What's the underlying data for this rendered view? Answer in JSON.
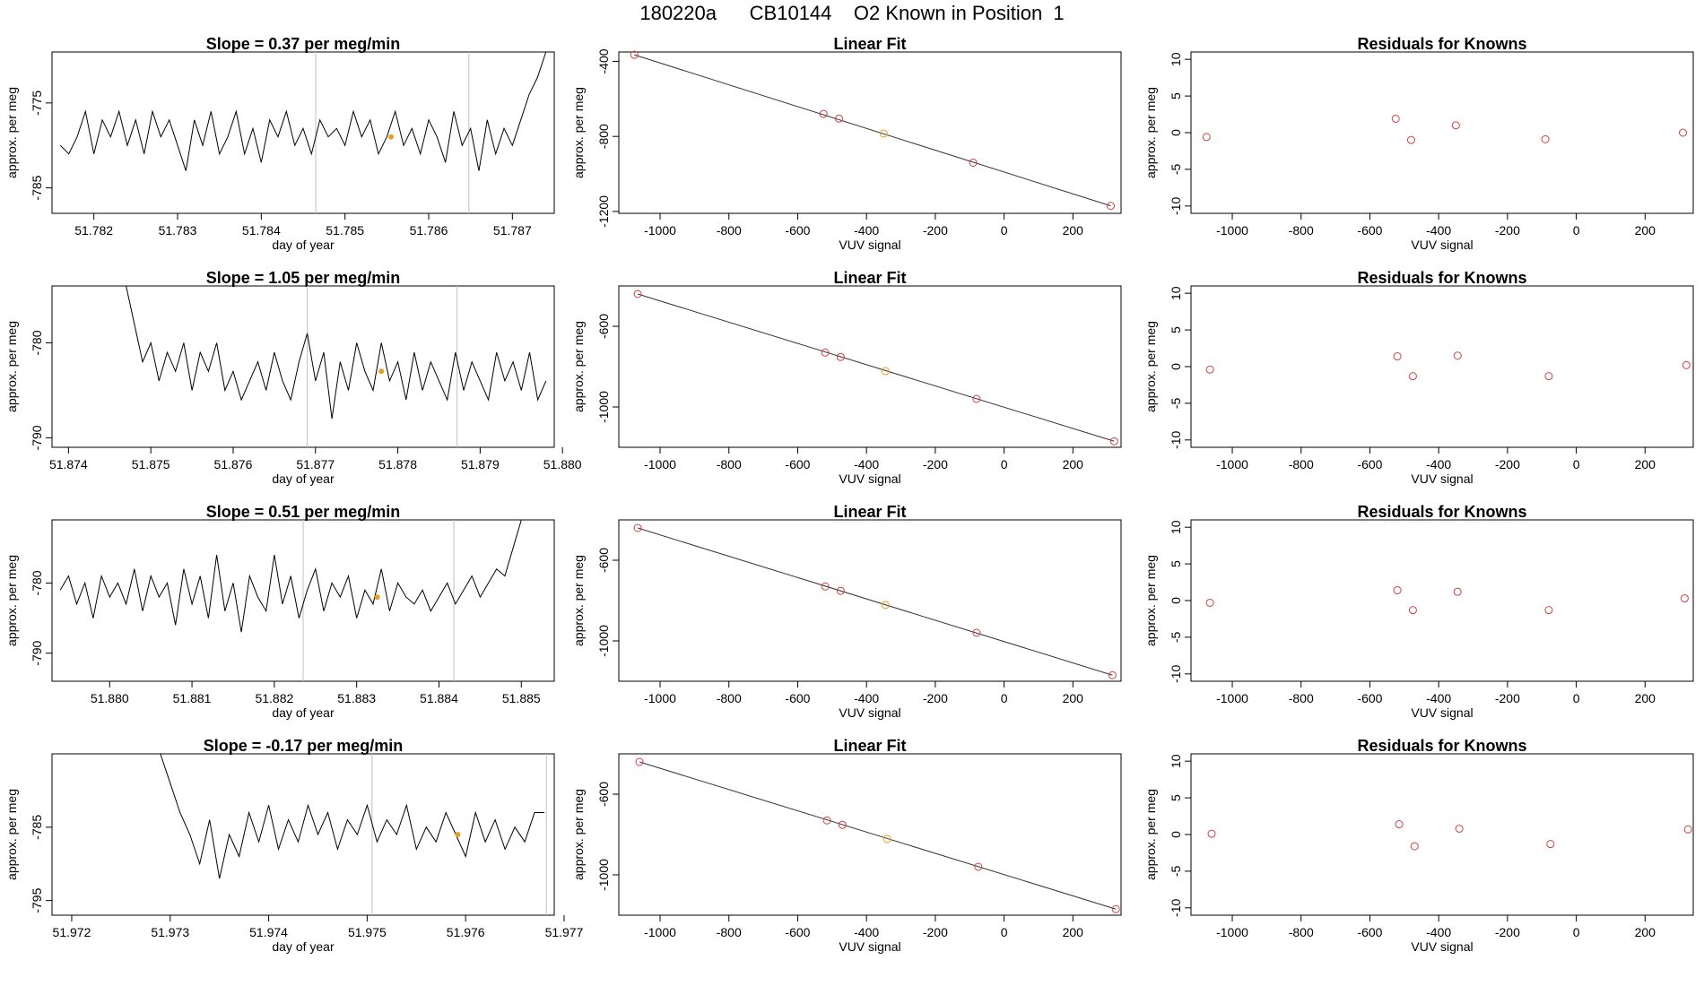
{
  "page_title": "180220a      CB10144    O2 Known in Position  1",
  "colors": {
    "series": "#000000",
    "highlight": "#e6a020",
    "points": "#d04040",
    "vline": "#c0c0c0",
    "frame": "#000000"
  },
  "chart_data": [
    {
      "type": "line",
      "title": "Slope =  0.37  per meg/min",
      "xlabel": "day of year",
      "ylabel": "approx. per meg",
      "xlim": [
        51.7815,
        51.7875
      ],
      "ylim": [
        -788,
        -769
      ],
      "xticks": [
        51.782,
        51.783,
        51.784,
        51.785,
        51.786,
        51.787
      ],
      "xtick_labels": [
        "51.782",
        "51.783",
        "51.784",
        "51.785",
        "51.786",
        "51.787"
      ],
      "yticks": [
        -775,
        -785
      ],
      "ytick_labels": [
        "-775",
        "-785"
      ],
      "vlines": [
        51.78465,
        51.78648
      ],
      "highlight_point": {
        "x": 51.78555,
        "y": -779
      },
      "x": [
        51.7816,
        51.7817,
        51.7818,
        51.7819,
        51.782,
        51.7821,
        51.7822,
        51.7823,
        51.7824,
        51.7825,
        51.7826,
        51.7827,
        51.7828,
        51.7829,
        51.783,
        51.7831,
        51.7832,
        51.7833,
        51.7834,
        51.7835,
        51.7836,
        51.7837,
        51.7838,
        51.7839,
        51.784,
        51.7841,
        51.7842,
        51.7843,
        51.7844,
        51.7845,
        51.7846,
        51.7847,
        51.7848,
        51.7849,
        51.785,
        51.7851,
        51.7852,
        51.7853,
        51.7854,
        51.7855,
        51.7856,
        51.7857,
        51.7858,
        51.7859,
        51.786,
        51.7861,
        51.7862,
        51.7863,
        51.7864,
        51.7865,
        51.7866,
        51.7867,
        51.7868,
        51.7869,
        51.787,
        51.7871,
        51.7872,
        51.7873,
        51.7874
      ],
      "y": [
        -780,
        -781,
        -779,
        -776,
        -781,
        -777,
        -779,
        -776,
        -780,
        -777,
        -781,
        -776,
        -779,
        -777,
        -780,
        -783,
        -777,
        -780,
        -776,
        -781,
        -779,
        -776,
        -781,
        -778,
        -782,
        -777,
        -779,
        -776,
        -780,
        -778,
        -781,
        -777,
        -779,
        -778,
        -780,
        -776,
        -779,
        -777,
        -781,
        -779,
        -776,
        -780,
        -778,
        -781,
        -777,
        -779,
        -782,
        -776,
        -780,
        -778,
        -783,
        -777,
        -781,
        -778,
        -780,
        -777,
        -774,
        -772,
        -769
      ]
    },
    {
      "type": "scatter",
      "title": "Linear Fit",
      "xlabel": "VUV signal",
      "ylabel": "approx. per meg",
      "xlim": [
        -1120,
        340
      ],
      "ylim": [
        -1210,
        -350
      ],
      "xticks": [
        -1000,
        -800,
        -600,
        -400,
        -200,
        0,
        200
      ],
      "xtick_labels": [
        "-1000",
        "-800",
        "-600",
        "-400",
        "-200",
        "0",
        "200"
      ],
      "yticks": [
        -400,
        -800,
        -1200
      ],
      "ytick_labels": [
        "-400",
        "-800",
        "-1200"
      ],
      "fit_line": {
        "x": [
          -1075,
          310
        ],
        "y": [
          -365,
          -1170
        ]
      },
      "x": [
        -1075,
        -525,
        -480,
        -350,
        -90,
        310
      ],
      "y": [
        -365,
        -680,
        -705,
        -785,
        -940,
        -1170
      ],
      "highlight_index": 3
    },
    {
      "type": "scatter",
      "title": "Residuals for Knowns",
      "xlabel": "VUV signal",
      "ylabel": "approx. per meg",
      "xlim": [
        -1120,
        340
      ],
      "ylim": [
        -11,
        11
      ],
      "xticks": [
        -1000,
        -800,
        -600,
        -400,
        -200,
        0,
        200
      ],
      "xtick_labels": [
        "-1000",
        "-800",
        "-600",
        "-400",
        "-200",
        "0",
        "200"
      ],
      "yticks": [
        10,
        5,
        0,
        -5,
        -10
      ],
      "ytick_labels": [
        "10",
        "5",
        "0",
        "-5",
        "-10"
      ],
      "x": [
        -1075,
        -525,
        -480,
        -350,
        -90,
        310
      ],
      "y": [
        -0.6,
        1.9,
        -1.0,
        1.0,
        -0.9,
        0.0
      ]
    },
    {
      "type": "line",
      "title": "Slope =  1.05  per meg/min",
      "xlabel": "day of year",
      "ylabel": "approx. per meg",
      "xlim": [
        51.8738,
        51.8799
      ],
      "ylim": [
        -791,
        -774
      ],
      "xticks": [
        51.874,
        51.875,
        51.876,
        51.877,
        51.878,
        51.879,
        51.88
      ],
      "xtick_labels": [
        "51.874",
        "51.875",
        "51.876",
        "51.877",
        "51.878",
        "51.879",
        "51.880"
      ],
      "yticks": [
        -780,
        -790
      ],
      "ytick_labels": [
        "-780",
        "-790"
      ],
      "vlines": [
        51.8769,
        51.87872
      ],
      "highlight_point": {
        "x": 51.8778,
        "y": -783
      },
      "x": [
        51.8747,
        51.8748,
        51.8749,
        51.875,
        51.8751,
        51.8752,
        51.8753,
        51.8754,
        51.8755,
        51.8756,
        51.8757,
        51.8758,
        51.8759,
        51.876,
        51.8761,
        51.8762,
        51.8763,
        51.8764,
        51.8765,
        51.8766,
        51.8767,
        51.8768,
        51.8769,
        51.877,
        51.8771,
        51.8772,
        51.8773,
        51.8774,
        51.8775,
        51.8776,
        51.8777,
        51.8778,
        51.8779,
        51.878,
        51.8781,
        51.8782,
        51.8783,
        51.8784,
        51.8785,
        51.8786,
        51.8787,
        51.8788,
        51.8789,
        51.879,
        51.8791,
        51.8792,
        51.8793,
        51.8794,
        51.8795,
        51.8796,
        51.8797,
        51.8798
      ],
      "y": [
        -774,
        -778,
        -782,
        -780,
        -784,
        -781,
        -783,
        -780,
        -785,
        -781,
        -783,
        -780,
        -785,
        -783,
        -786,
        -784,
        -782,
        -785,
        -781,
        -784,
        -786,
        -782,
        -779,
        -784,
        -781,
        -788,
        -782,
        -785,
        -780,
        -783,
        -785,
        -780,
        -784,
        -782,
        -786,
        -781,
        -785,
        -782,
        -784,
        -786,
        -781,
        -785,
        -782,
        -784,
        -786,
        -781,
        -784,
        -782,
        -785,
        -781,
        -786,
        -784
      ]
    },
    {
      "type": "scatter",
      "title": "Linear Fit",
      "xlabel": "VUV signal",
      "ylabel": "approx. per meg",
      "xlim": [
        -1120,
        340
      ],
      "ylim": [
        -1200,
        -400
      ],
      "xticks": [
        -1000,
        -800,
        -600,
        -400,
        -200,
        0,
        200
      ],
      "xtick_labels": [
        "-1000",
        "-800",
        "-600",
        "-400",
        "-200",
        "0",
        "200"
      ],
      "yticks": [
        -600,
        -1000
      ],
      "ytick_labels": [
        "-600",
        "-1000"
      ],
      "fit_line": {
        "x": [
          -1065,
          320
        ],
        "y": [
          -440,
          -1170
        ]
      },
      "x": [
        -1065,
        -520,
        -475,
        -345,
        -80,
        320
      ],
      "y": [
        -440,
        -730,
        -752,
        -822,
        -960,
        -1170
      ],
      "highlight_index": 3
    },
    {
      "type": "scatter",
      "title": "Residuals for Knowns",
      "xlabel": "VUV signal",
      "ylabel": "approx. per meg",
      "xlim": [
        -1120,
        340
      ],
      "ylim": [
        -11,
        11
      ],
      "xticks": [
        -1000,
        -800,
        -600,
        -400,
        -200,
        0,
        200
      ],
      "xtick_labels": [
        "-1000",
        "-800",
        "-600",
        "-400",
        "-200",
        "0",
        "200"
      ],
      "yticks": [
        10,
        5,
        0,
        -5,
        -10
      ],
      "ytick_labels": [
        "10",
        "5",
        "0",
        "-5",
        "-10"
      ],
      "x": [
        -1065,
        -520,
        -475,
        -345,
        -80,
        320
      ],
      "y": [
        -0.4,
        1.4,
        -1.3,
        1.5,
        -1.3,
        0.2
      ]
    },
    {
      "type": "line",
      "title": "Slope =  0.51  per meg/min",
      "xlabel": "day of year",
      "ylabel": "approx. per meg",
      "xlim": [
        51.8793,
        51.8854
      ],
      "ylim": [
        -794,
        -771
      ],
      "xticks": [
        51.88,
        51.881,
        51.882,
        51.883,
        51.884,
        51.885
      ],
      "xtick_labels": [
        "51.880",
        "51.881",
        "51.882",
        "51.883",
        "51.884",
        "51.885"
      ],
      "yticks": [
        -780,
        -790
      ],
      "ytick_labels": [
        "-780",
        "-790"
      ],
      "vlines": [
        51.88235,
        51.88418
      ],
      "highlight_point": {
        "x": 51.88325,
        "y": -782
      },
      "x": [
        51.8794,
        51.8795,
        51.8796,
        51.8797,
        51.8798,
        51.8799,
        51.88,
        51.8801,
        51.8802,
        51.8803,
        51.8804,
        51.8805,
        51.8806,
        51.8807,
        51.8808,
        51.8809,
        51.881,
        51.8811,
        51.8812,
        51.8813,
        51.8814,
        51.8815,
        51.8816,
        51.8817,
        51.8818,
        51.8819,
        51.882,
        51.8821,
        51.8822,
        51.8823,
        51.8824,
        51.8825,
        51.8826,
        51.8827,
        51.8828,
        51.8829,
        51.883,
        51.8831,
        51.8832,
        51.8833,
        51.8834,
        51.8835,
        51.8836,
        51.8837,
        51.8838,
        51.8839,
        51.884,
        51.8841,
        51.8842,
        51.8843,
        51.8844,
        51.8845,
        51.8846,
        51.8847,
        51.8848,
        51.8849,
        51.885,
        51.8851
      ],
      "y": [
        -781,
        -779,
        -783,
        -780,
        -785,
        -779,
        -782,
        -780,
        -783,
        -778,
        -784,
        -779,
        -782,
        -780,
        -786,
        -778,
        -783,
        -779,
        -785,
        -776,
        -784,
        -780,
        -787,
        -779,
        -782,
        -784,
        -776,
        -783,
        -779,
        -785,
        -781,
        -778,
        -784,
        -780,
        -782,
        -779,
        -785,
        -781,
        -783,
        -778,
        -784,
        -780,
        -782,
        -783,
        -781,
        -784,
        -782,
        -780,
        -783,
        -781,
        -779,
        -782,
        -780,
        -778,
        -779,
        -775,
        -771,
        -771
      ]
    },
    {
      "type": "scatter",
      "title": "Linear Fit",
      "xlabel": "VUV signal",
      "ylabel": "approx. per meg",
      "xlim": [
        -1120,
        340
      ],
      "ylim": [
        -1200,
        -400
      ],
      "xticks": [
        -1000,
        -800,
        -600,
        -400,
        -200,
        0,
        200
      ],
      "xtick_labels": [
        "-1000",
        "-800",
        "-600",
        "-400",
        "-200",
        "0",
        "200"
      ],
      "yticks": [
        -600,
        -1000
      ],
      "ytick_labels": [
        "-600",
        "-1000"
      ],
      "fit_line": {
        "x": [
          -1065,
          315
        ],
        "y": [
          -440,
          -1170
        ]
      },
      "x": [
        -1065,
        -520,
        -475,
        -345,
        -80,
        315
      ],
      "y": [
        -440,
        -730,
        -752,
        -822,
        -960,
        -1170
      ],
      "highlight_index": 3
    },
    {
      "type": "scatter",
      "title": "Residuals for Knowns",
      "xlabel": "VUV signal",
      "ylabel": "approx. per meg",
      "xlim": [
        -1120,
        340
      ],
      "ylim": [
        -11,
        11
      ],
      "xticks": [
        -1000,
        -800,
        -600,
        -400,
        -200,
        0,
        200
      ],
      "xtick_labels": [
        "-1000",
        "-800",
        "-600",
        "-400",
        "-200",
        "0",
        "200"
      ],
      "yticks": [
        10,
        5,
        0,
        -5,
        -10
      ],
      "ytick_labels": [
        "10",
        "5",
        "0",
        "-5",
        "-10"
      ],
      "x": [
        -1065,
        -520,
        -475,
        -345,
        -80,
        315
      ],
      "y": [
        -0.3,
        1.4,
        -1.3,
        1.2,
        -1.3,
        0.3
      ]
    },
    {
      "type": "line",
      "title": "Slope =  -0.17  per meg/min",
      "xlabel": "day of year",
      "ylabel": "approx. per meg",
      "xlim": [
        51.9718,
        51.9769
      ],
      "ylim": [
        -797,
        -775
      ],
      "xticks": [
        51.972,
        51.973,
        51.974,
        51.975,
        51.976,
        51.977
      ],
      "xtick_labels": [
        "51.972",
        "51.973",
        "51.974",
        "51.975",
        "51.976",
        "51.977"
      ],
      "yticks": [
        -785,
        -795
      ],
      "ytick_labels": [
        "-785",
        "-795"
      ],
      "vlines": [
        51.97505,
        51.97682
      ],
      "highlight_point": {
        "x": 51.97592,
        "y": -786
      },
      "x": [
        51.9729,
        51.973,
        51.9731,
        51.9732,
        51.9733,
        51.9734,
        51.9735,
        51.9736,
        51.9737,
        51.9738,
        51.9739,
        51.974,
        51.9741,
        51.9742,
        51.9743,
        51.9744,
        51.9745,
        51.9746,
        51.9747,
        51.9748,
        51.9749,
        51.975,
        51.9751,
        51.9752,
        51.9753,
        51.9754,
        51.9755,
        51.9756,
        51.9757,
        51.9758,
        51.9759,
        51.976,
        51.9761,
        51.9762,
        51.9763,
        51.9764,
        51.9765,
        51.9766,
        51.9767,
        51.9768
      ],
      "y": [
        -775,
        -779,
        -783,
        -786,
        -790,
        -784,
        -792,
        -786,
        -789,
        -783,
        -787,
        -782,
        -788,
        -784,
        -787,
        -782,
        -786,
        -783,
        -788,
        -784,
        -786,
        -782,
        -787,
        -784,
        -786,
        -782,
        -788,
        -785,
        -787,
        -783,
        -786,
        -789,
        -783,
        -787,
        -784,
        -788,
        -785,
        -787,
        -783,
        -783
      ]
    },
    {
      "type": "scatter",
      "title": "Linear Fit",
      "xlabel": "VUV signal",
      "ylabel": "approx. per meg",
      "xlim": [
        -1120,
        340
      ],
      "ylim": [
        -1200,
        -400
      ],
      "xticks": [
        -1000,
        -800,
        -600,
        -400,
        -200,
        0,
        200
      ],
      "xtick_labels": [
        "-1000",
        "-800",
        "-600",
        "-400",
        "-200",
        "0",
        "200"
      ],
      "yticks": [
        -600,
        -1000
      ],
      "ytick_labels": [
        "-600",
        "-1000"
      ],
      "fit_line": {
        "x": [
          -1060,
          325
        ],
        "y": [
          -440,
          -1170
        ]
      },
      "x": [
        -1060,
        -515,
        -470,
        -340,
        -75,
        325
      ],
      "y": [
        -440,
        -730,
        -752,
        -822,
        -960,
        -1170
      ],
      "highlight_index": 3
    },
    {
      "type": "scatter",
      "title": "Residuals for Knowns",
      "xlabel": "VUV signal",
      "ylabel": "approx. per meg",
      "xlim": [
        -1120,
        340
      ],
      "ylim": [
        -11,
        11
      ],
      "xticks": [
        -1000,
        -800,
        -600,
        -400,
        -200,
        0,
        200
      ],
      "xtick_labels": [
        "-1000",
        "-800",
        "-600",
        "-400",
        "-200",
        "0",
        "200"
      ],
      "yticks": [
        10,
        5,
        0,
        -5,
        -10
      ],
      "ytick_labels": [
        "10",
        "5",
        "0",
        "-5",
        "-10"
      ],
      "x": [
        -1060,
        -515,
        -470,
        -340,
        -75,
        325
      ],
      "y": [
        0.1,
        1.4,
        -1.6,
        0.8,
        -1.3,
        0.7
      ]
    }
  ]
}
